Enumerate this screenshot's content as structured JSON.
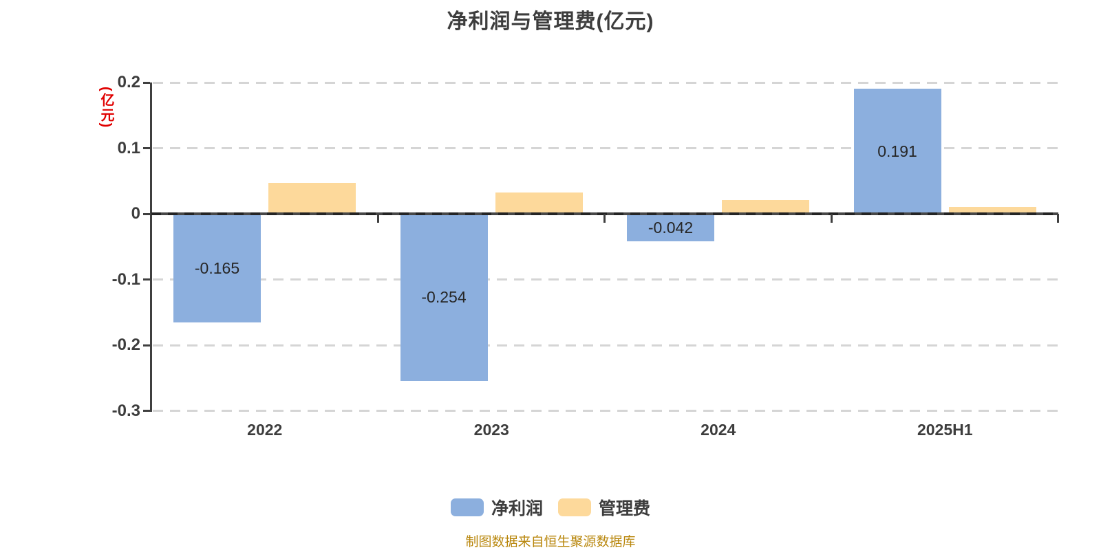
{
  "title": "净利润与管理费(亿元)",
  "y_axis_label": "(亿元)",
  "footer_note": "制图数据来自恒生聚源数据库",
  "legend": [
    {
      "id": "net-profit",
      "label": "净利润",
      "color": "#8CAFDE"
    },
    {
      "id": "management-fee",
      "label": "管理费",
      "color": "#FDD99B"
    }
  ],
  "chart_data": {
    "type": "bar",
    "title": "净利润与管理费(亿元)",
    "categories": [
      "2022",
      "2023",
      "2024",
      "2025H1"
    ],
    "series": [
      {
        "id": "net-profit",
        "name": "净利润",
        "color": "#8CAFDE",
        "values": [
          -0.165,
          -0.254,
          -0.042,
          0.191
        ],
        "labels": [
          "-0.165",
          "-0.254",
          "-0.042",
          "0.191"
        ]
      },
      {
        "id": "management-fee",
        "name": "管理费",
        "color": "#FDD99B",
        "values": [
          0.047,
          0.032,
          0.021,
          0.01
        ],
        "labels": [
          null,
          null,
          null,
          null
        ]
      }
    ],
    "xlabel": "",
    "ylabel": "(亿元)",
    "ylim": [
      -0.3,
      0.2
    ],
    "ytick_labels": [
      "0.2",
      "0.1",
      "0",
      "-0.1",
      "-0.2",
      "-0.3"
    ],
    "grid": "horizontal-dashed",
    "legend_position": "bottom",
    "source_note": "制图数据来自恒生聚源数据库"
  },
  "colors": {
    "bar_blue": "#8CAFDE",
    "bar_yellow": "#FDD99B",
    "axis": "#3F3F3F",
    "grid": "#D5D5D5",
    "text": "#3D3D3D",
    "unit_label_red": "#E00000",
    "footer_gold": "#B8860B"
  }
}
